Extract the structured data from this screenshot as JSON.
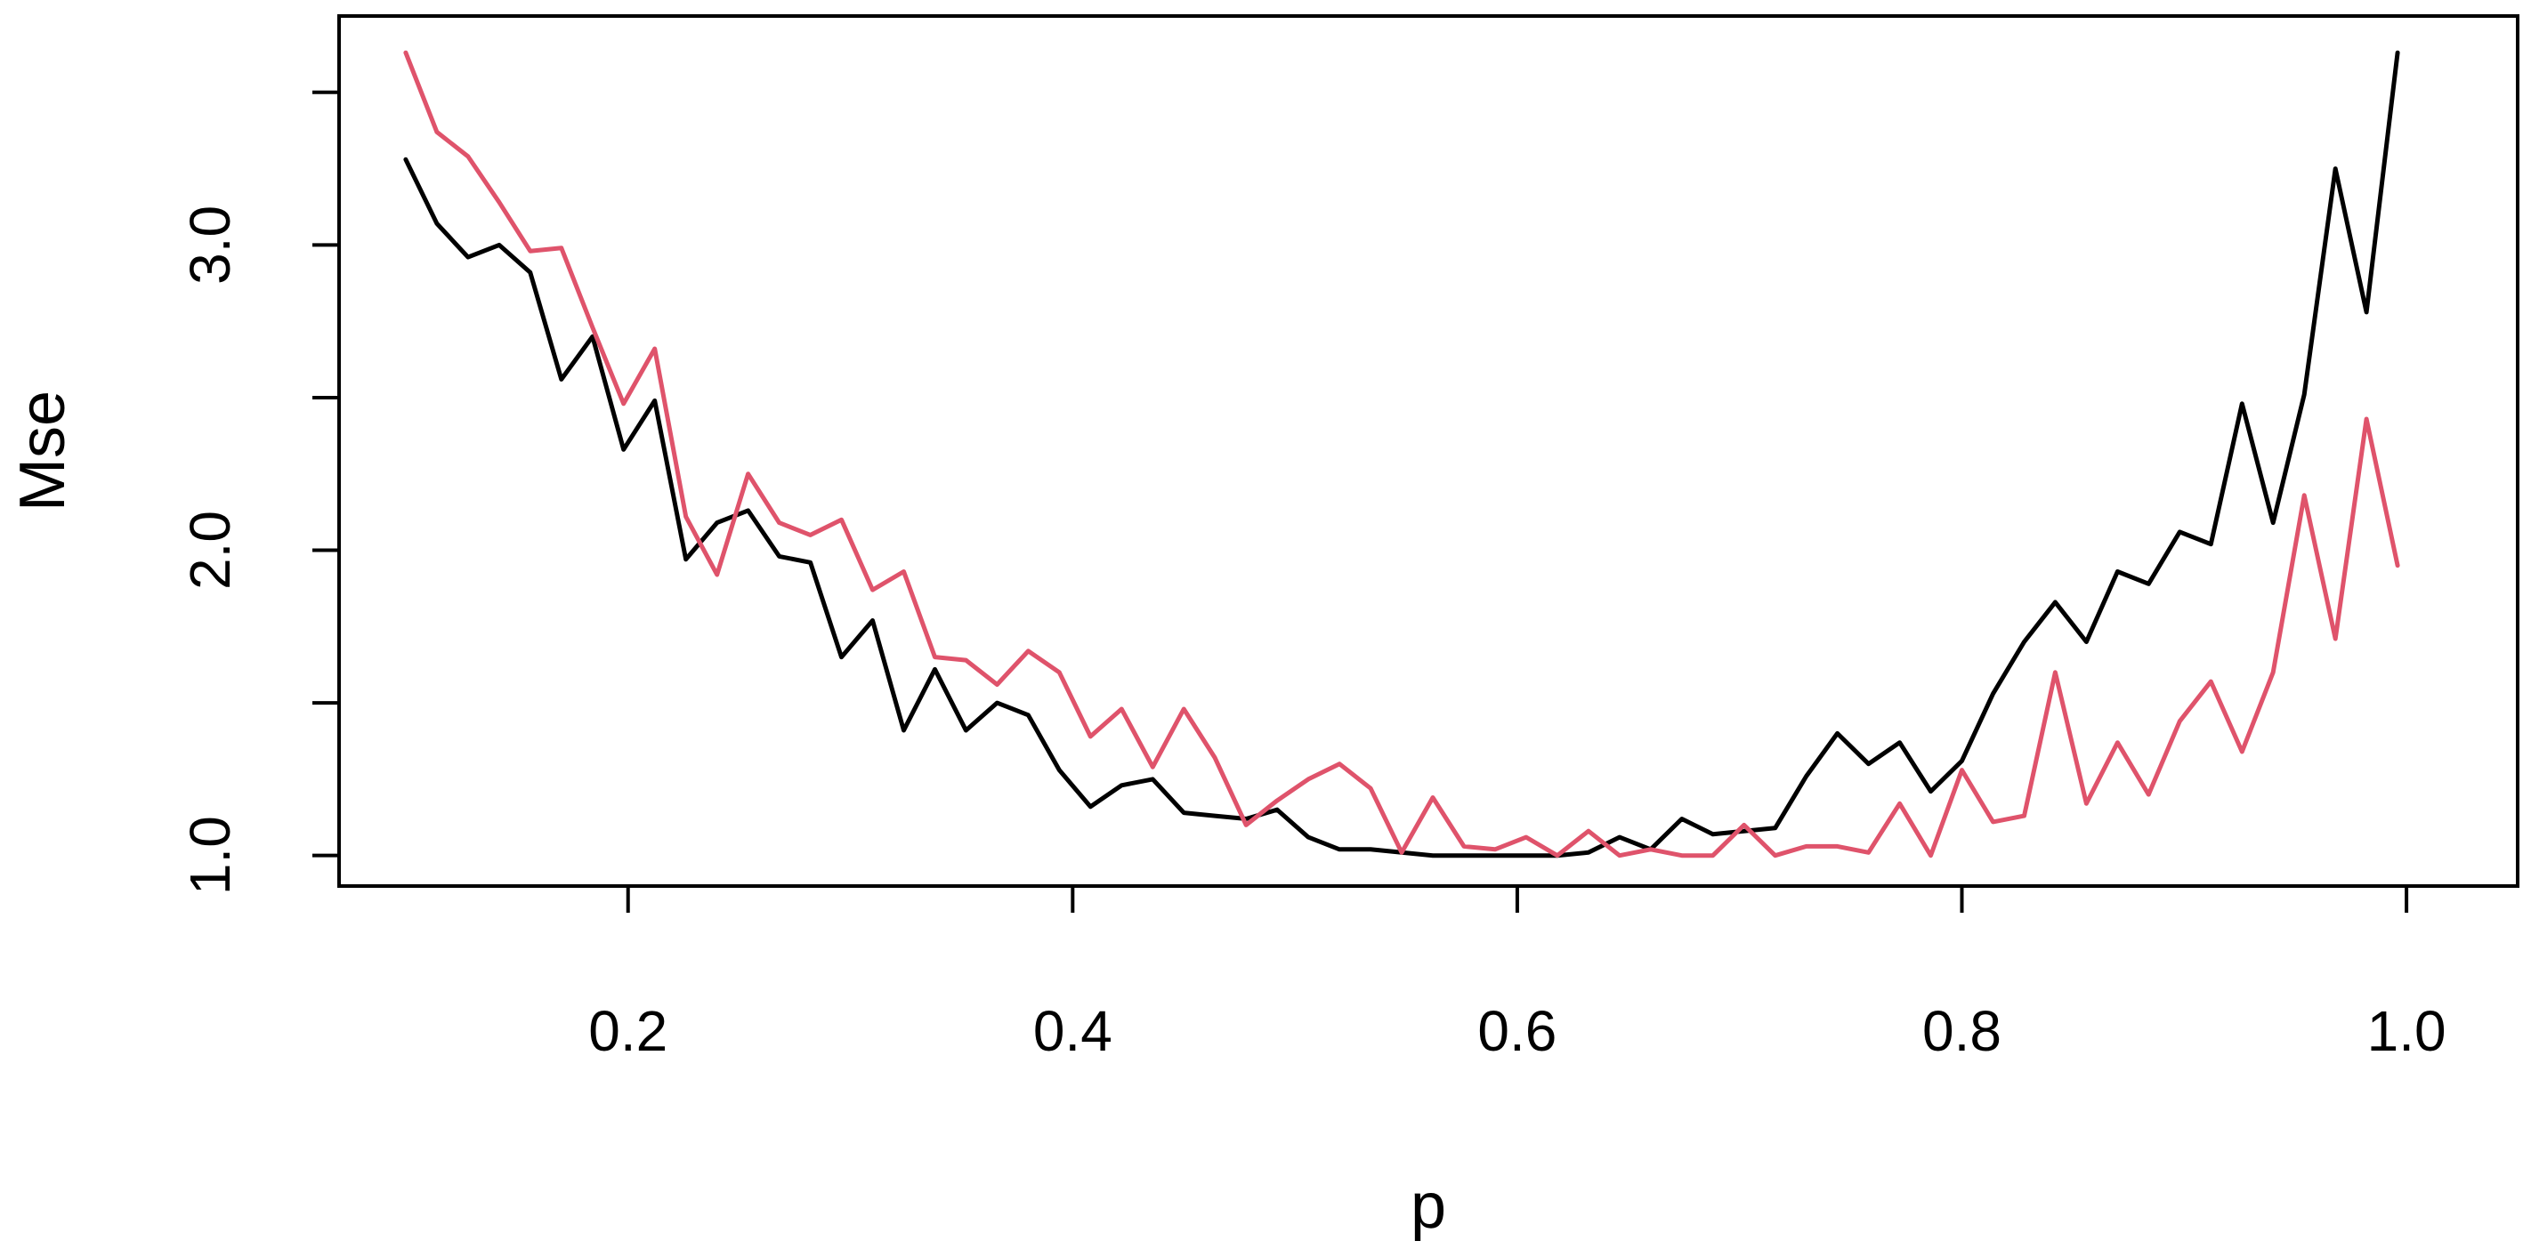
{
  "chart_data": {
    "type": "line",
    "title": "",
    "xlabel": "p",
    "ylabel": "Mse",
    "xlim": [
      0.07,
      1.05
    ],
    "ylim": [
      0.9,
      3.75
    ],
    "x_ticks": [
      0.2,
      0.4,
      0.6,
      0.8,
      1.0
    ],
    "x_tick_labels": [
      "0.2",
      "0.4",
      "0.6",
      "0.8",
      "1.0"
    ],
    "y_ticks": [
      1.0,
      1.5,
      2.0,
      2.5,
      3.0,
      3.5
    ],
    "y_tick_labels": [
      "1.0",
      "",
      "2.0",
      "",
      "3.0",
      ""
    ],
    "grid": false,
    "x": [
      0.1,
      0.114,
      0.128,
      0.142,
      0.156,
      0.17,
      0.184,
      0.198,
      0.212,
      0.226,
      0.24,
      0.254,
      0.268,
      0.282,
      0.296,
      0.31,
      0.324,
      0.338,
      0.352,
      0.366,
      0.38,
      0.394,
      0.408,
      0.422,
      0.436,
      0.45,
      0.464,
      0.478,
      0.492,
      0.506,
      0.52,
      0.534,
      0.548,
      0.562,
      0.576,
      0.59,
      0.604,
      0.618,
      0.632,
      0.646,
      0.66,
      0.674,
      0.688,
      0.702,
      0.716,
      0.73,
      0.744,
      0.758,
      0.772,
      0.786,
      0.8,
      0.814,
      0.828,
      0.842,
      0.856,
      0.87,
      0.884,
      0.898,
      0.912,
      0.926,
      0.94,
      0.954,
      0.968,
      0.982,
      0.996
    ],
    "series": [
      {
        "color": "#000000",
        "values": [
          3.28,
          3.07,
          2.96,
          3.0,
          2.91,
          2.56,
          2.7,
          2.33,
          2.49,
          1.97,
          2.09,
          2.13,
          1.98,
          1.96,
          1.65,
          1.77,
          1.41,
          1.61,
          1.41,
          1.5,
          1.46,
          1.28,
          1.16,
          1.23,
          1.25,
          1.14,
          1.13,
          1.12,
          1.15,
          1.06,
          1.02,
          1.02,
          1.01,
          1.0,
          1.0,
          1.0,
          1.0,
          1.0,
          1.01,
          1.06,
          1.02,
          1.12,
          1.07,
          1.08,
          1.09,
          1.26,
          1.4,
          1.3,
          1.37,
          1.21,
          1.31,
          1.53,
          1.7,
          1.83,
          1.7,
          1.93,
          1.89,
          2.06,
          2.02,
          2.48,
          2.09,
          2.51,
          3.25,
          2.78,
          3.63
        ]
      },
      {
        "color": "#DF536B",
        "values": [
          3.63,
          3.37,
          3.29,
          3.14,
          2.98,
          2.99,
          2.73,
          2.48,
          2.66,
          2.11,
          1.92,
          2.25,
          2.09,
          2.05,
          2.1,
          1.87,
          1.93,
          1.65,
          1.64,
          1.56,
          1.67,
          1.6,
          1.39,
          1.48,
          1.29,
          1.48,
          1.32,
          1.1,
          1.18,
          1.25,
          1.3,
          1.22,
          1.01,
          1.19,
          1.03,
          1.02,
          1.06,
          1.0,
          1.08,
          1.0,
          1.02,
          1.0,
          1.0,
          1.1,
          1.0,
          1.03,
          1.03,
          1.01,
          1.17,
          1.0,
          1.28,
          1.11,
          1.13,
          1.6,
          1.17,
          1.37,
          1.2,
          1.44,
          1.57,
          1.34,
          1.6,
          2.18,
          1.71,
          2.43,
          1.95
        ]
      }
    ]
  }
}
